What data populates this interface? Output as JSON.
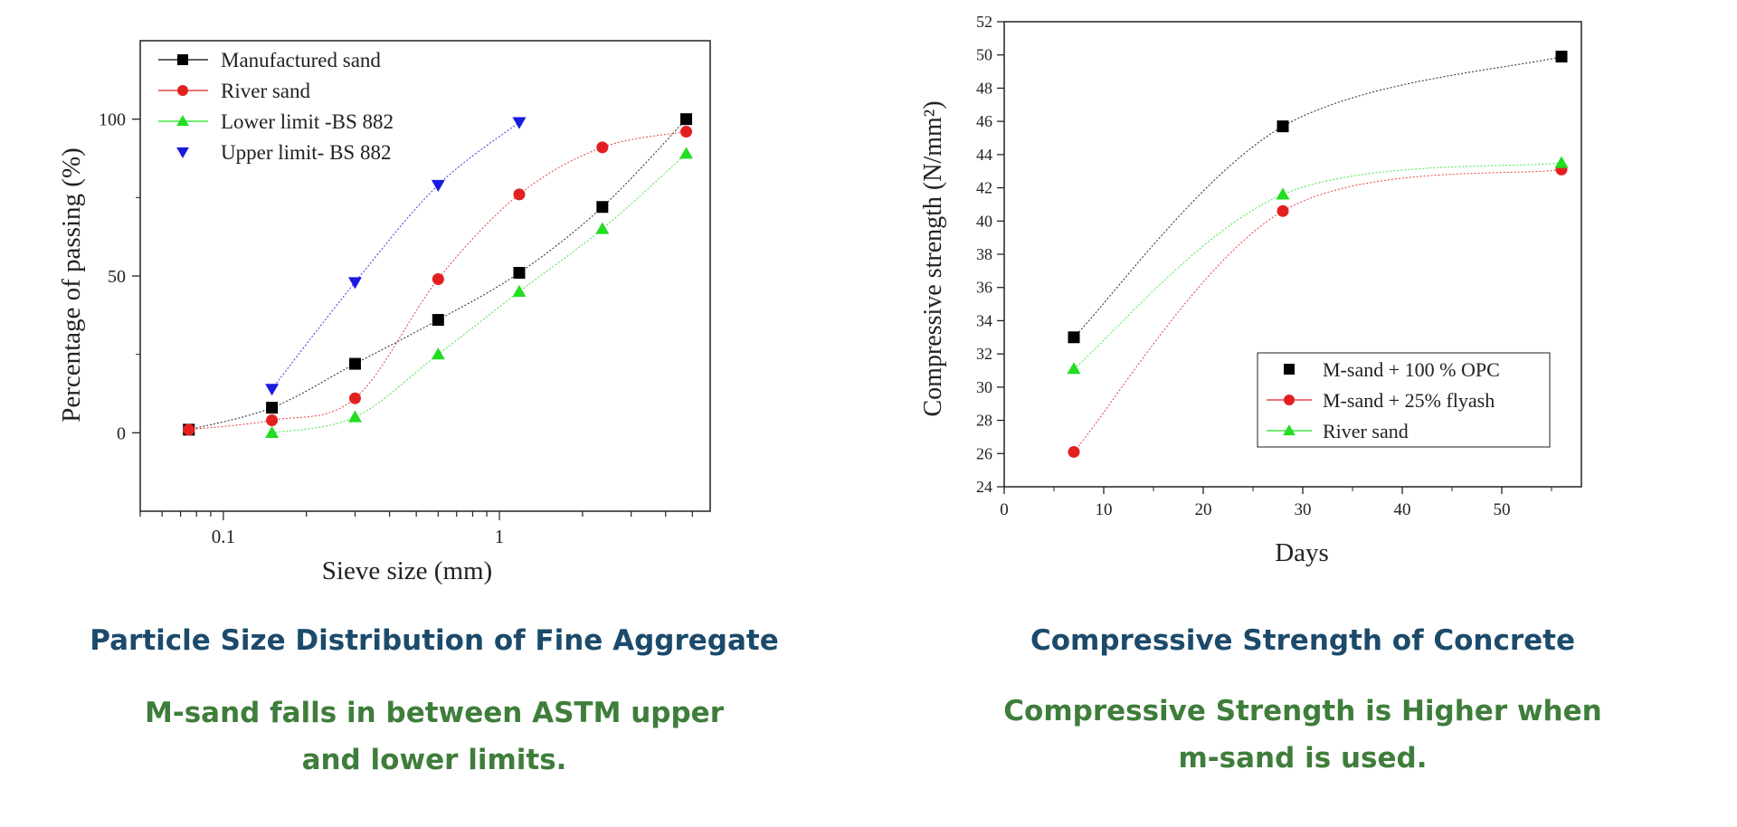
{
  "chart_data": [
    {
      "type": "line",
      "title": "",
      "xlabel": "Sieve size (mm)",
      "ylabel": "Percentage of passing (%)",
      "xscale": "log",
      "xlim": [
        0.05,
        5.8
      ],
      "ylim": [
        -25,
        125
      ],
      "xticks": [
        {
          "value": 0.1,
          "label": "0.1"
        },
        {
          "value": 1,
          "label": "1"
        }
      ],
      "yticks": [
        {
          "value": 0,
          "label": "0"
        },
        {
          "value": 50,
          "label": "50"
        },
        {
          "value": 100,
          "label": "100"
        }
      ],
      "legend_position": "top-left",
      "series": [
        {
          "name": "Manufactured sand",
          "color": "#000000",
          "marker": "square",
          "x": [
            0.075,
            0.15,
            0.3,
            0.6,
            1.18,
            2.36,
            4.75
          ],
          "y": [
            1,
            8,
            22,
            36,
            51,
            72,
            100
          ]
        },
        {
          "name": "River sand",
          "color": "#e32020",
          "marker": "circle",
          "x": [
            0.075,
            0.15,
            0.3,
            0.6,
            1.18,
            2.36,
            4.75
          ],
          "y": [
            1,
            4,
            11,
            49,
            76,
            91,
            96
          ]
        },
        {
          "name": "Lower limit -BS 882",
          "color": "#22dd22",
          "marker": "triangle-up",
          "x": [
            0.15,
            0.3,
            0.6,
            1.18,
            2.36,
            4.75
          ],
          "y": [
            0,
            5,
            25,
            45,
            65,
            89
          ]
        },
        {
          "name": "Upper limit- BS 882",
          "color": "#1a1ae0",
          "marker": "triangle-down",
          "x": [
            0.15,
            0.3,
            0.6,
            1.18
          ],
          "y": [
            14,
            48,
            79,
            99
          ]
        }
      ]
    },
    {
      "type": "line",
      "title": "",
      "xlabel": "Days",
      "ylabel": "Compressive strength (N/mm²)",
      "xlim": [
        0,
        58
      ],
      "ylim": [
        24,
        52
      ],
      "xticks": [
        0,
        10,
        20,
        30,
        40,
        50
      ],
      "yticks": [
        24,
        26,
        28,
        30,
        32,
        34,
        36,
        38,
        40,
        42,
        44,
        46,
        48,
        50,
        52
      ],
      "legend_position": "bottom-right",
      "series": [
        {
          "name": "M-sand + 100 % OPC",
          "color": "#000000",
          "marker": "square",
          "x": [
            7,
            28,
            56
          ],
          "y": [
            33.0,
            45.7,
            49.9
          ]
        },
        {
          "name": "M-sand + 25% flyash",
          "color": "#e32020",
          "marker": "circle",
          "x": [
            7,
            28,
            56
          ],
          "y": [
            26.1,
            40.6,
            43.1
          ]
        },
        {
          "name": "River sand",
          "color": "#22dd22",
          "marker": "triangle-up",
          "x": [
            7,
            28,
            56
          ],
          "y": [
            31.1,
            41.6,
            43.5
          ]
        }
      ]
    }
  ],
  "captions": {
    "left_title": "Particle Size Distribution of Fine Aggregate",
    "left_sub_line1": "M-sand falls in between ASTM upper",
    "left_sub_line2": "and lower limits.",
    "right_title": "Compressive Strength of Concrete",
    "right_sub_line1": "Compressive Strength is Higher when",
    "right_sub_line2": "m-sand is used."
  }
}
